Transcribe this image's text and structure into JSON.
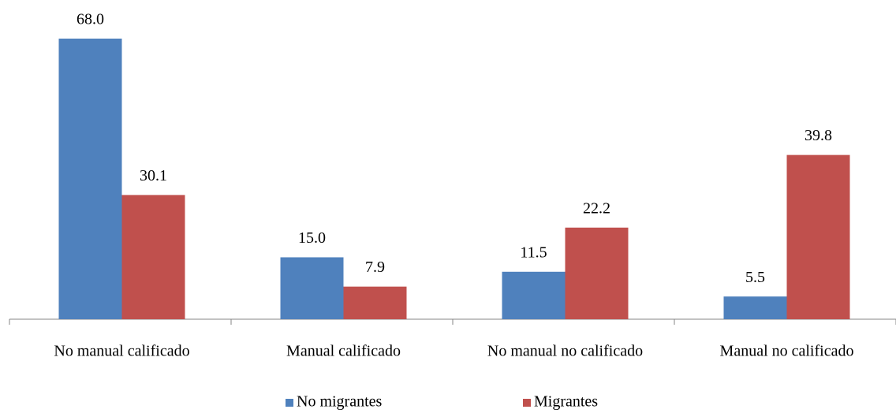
{
  "chart_data": {
    "type": "bar",
    "categories": [
      "No manual calificado",
      "Manual calificado",
      "No manual no calificado",
      "Manual no calificado"
    ],
    "series": [
      {
        "name": "No migrantes",
        "color": "#4f81bd",
        "values": [
          68.0,
          15.0,
          11.5,
          5.5
        ],
        "value_labels": [
          "68.0",
          "15.0",
          "11.5",
          "5.5"
        ]
      },
      {
        "name": "Migrantes",
        "color": "#c0504d",
        "values": [
          30.1,
          7.9,
          22.2,
          39.8
        ],
        "value_labels": [
          "30.1",
          "7.9",
          "22.2",
          "39.8"
        ]
      }
    ],
    "ylim": [
      0,
      70
    ]
  }
}
